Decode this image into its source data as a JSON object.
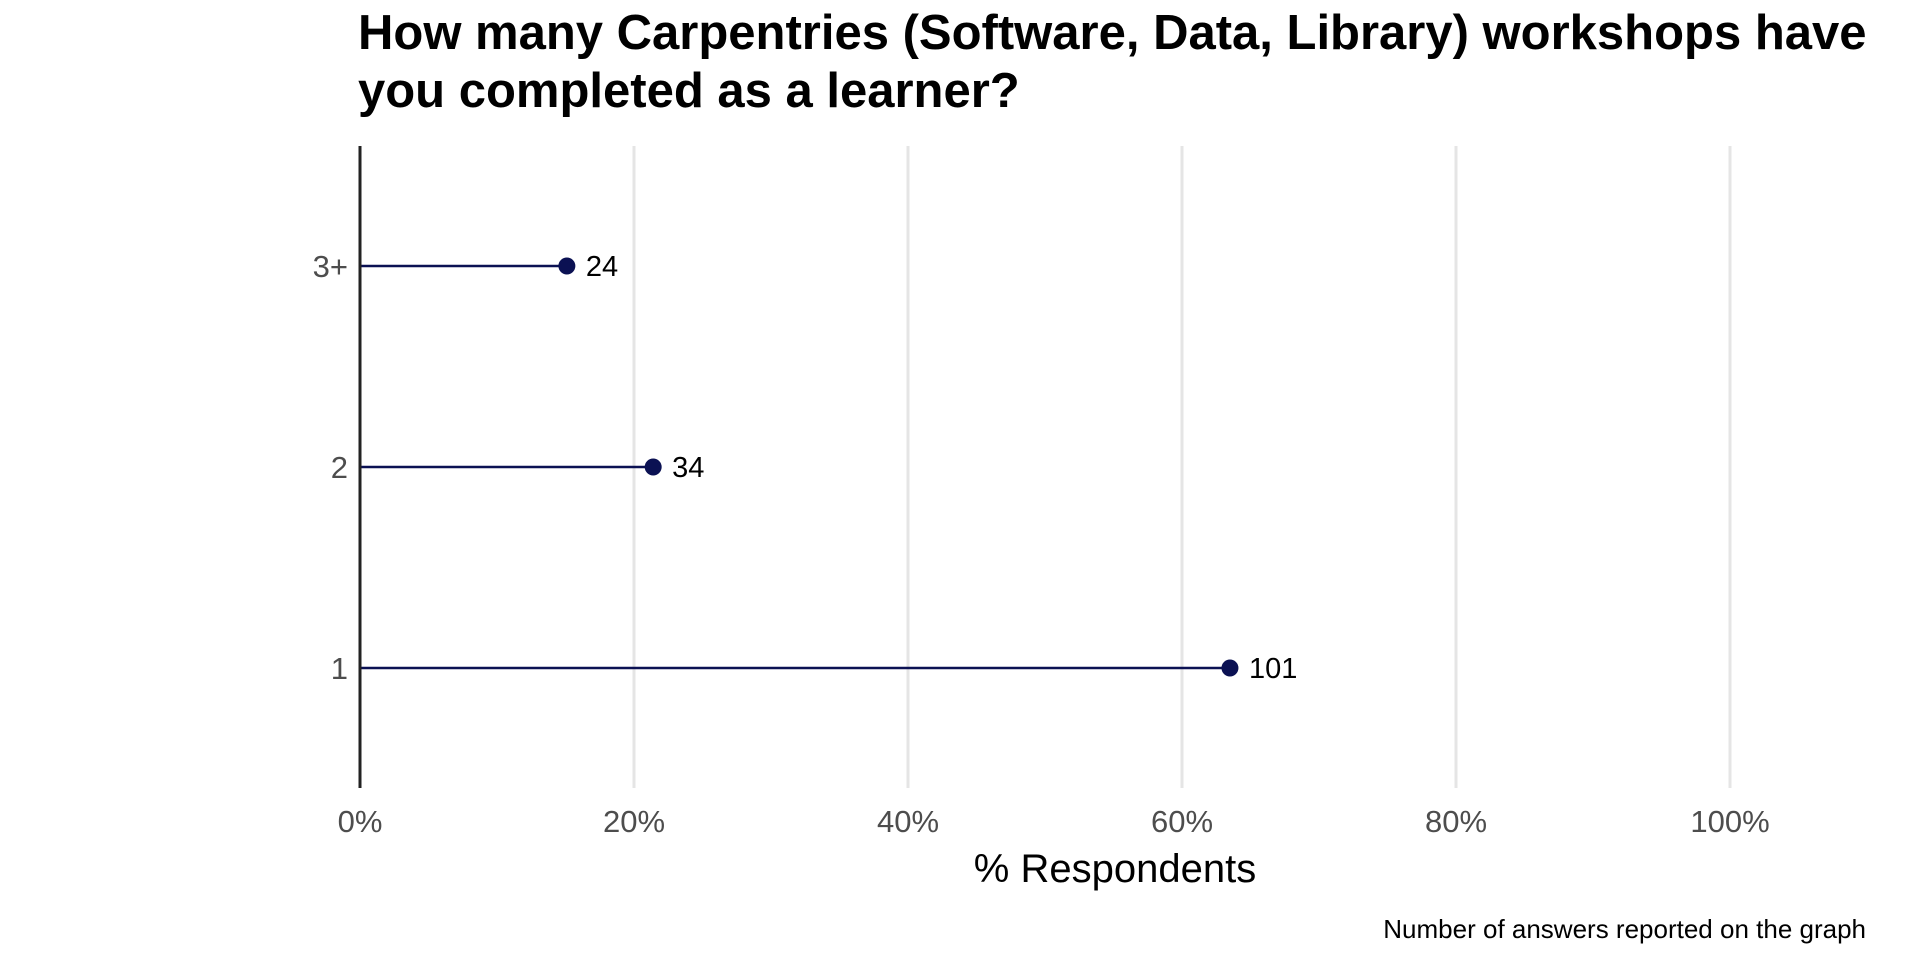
{
  "chart_data": {
    "type": "lollipop",
    "title": "How many Carpentries (Software, Data, Library) workshops have you completed as a learner?",
    "xlabel": "% Respondents",
    "ylabel": "",
    "xlim": [
      0,
      100
    ],
    "x_ticks": [
      "0%",
      "20%",
      "40%",
      "60%",
      "80%",
      "100%"
    ],
    "x_tick_values": [
      0,
      20,
      40,
      60,
      80,
      100
    ],
    "categories": [
      "3+",
      "2",
      "1"
    ],
    "values": [
      15.1,
      21.4,
      63.5
    ],
    "counts": [
      "24",
      "34",
      "101"
    ],
    "caption": "Number of answers reported on the graph",
    "grid": "vertical major lines",
    "colors": {
      "lollipop": "#0b1153",
      "grid": "#e5e5e5",
      "axis_line": "#222222"
    }
  }
}
